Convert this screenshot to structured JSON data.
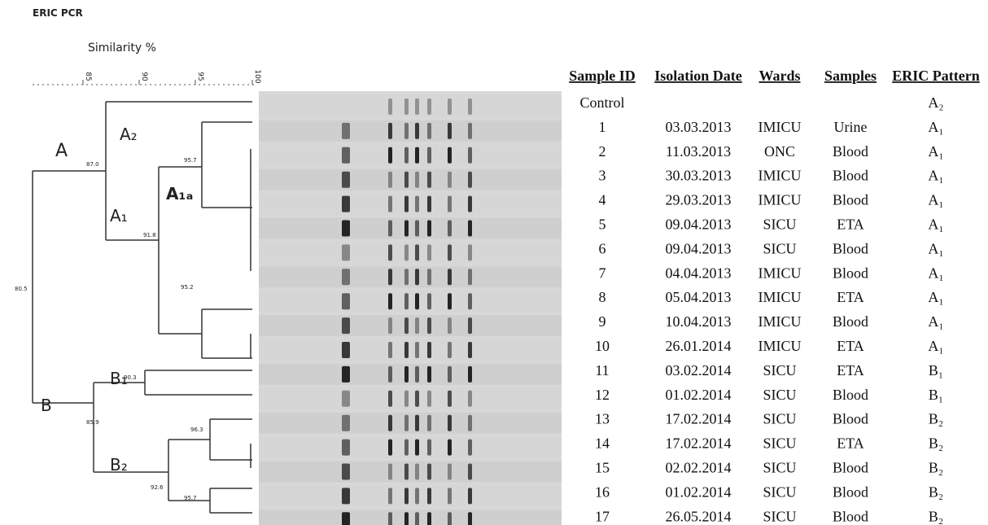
{
  "title": "ERIC PCR",
  "scale": {
    "label": "Similarity %",
    "ticks": [
      "85",
      "90",
      "95",
      "100"
    ]
  },
  "dendrogram": {
    "clusters": [
      "A",
      "A₂",
      "A₁",
      "A₁ₐ",
      "B",
      "B₁",
      "B₂"
    ],
    "node_values": [
      "80.5",
      "87.0",
      "95.7",
      "91.8",
      "95.2",
      "90.3",
      "85.9",
      "96.3",
      "92.6",
      "95.7"
    ]
  },
  "table": {
    "headers": [
      "Sample ID",
      "Isolation Date",
      "Wards",
      "Samples",
      "ERIC Pattern"
    ],
    "rows": [
      {
        "id": "Control",
        "pattern": "A₂"
      },
      {
        "id": "1",
        "date": "03.03.2013",
        "ward": "IMICU",
        "sample": "Urine",
        "pattern": "A₁"
      },
      {
        "id": "2",
        "date": "11.03.2013",
        "ward": "ONC",
        "sample": "Blood",
        "pattern": "A₁"
      },
      {
        "id": "3",
        "date": "30.03.2013",
        "ward": "IMICU",
        "sample": "Blood",
        "pattern": "A₁"
      },
      {
        "id": "4",
        "date": "29.03.2013",
        "ward": "IMICU",
        "sample": "Blood",
        "pattern": "A₁"
      },
      {
        "id": "5",
        "date": "09.04.2013",
        "ward": "SICU",
        "sample": "ETA",
        "pattern": "A₁"
      },
      {
        "id": "6",
        "date": "09.04.2013",
        "ward": "SICU",
        "sample": "Blood",
        "pattern": "A₁"
      },
      {
        "id": "7",
        "date": "04.04.2013",
        "ward": "IMICU",
        "sample": "Blood",
        "pattern": "A₁"
      },
      {
        "id": "8",
        "date": "05.04.2013",
        "ward": "IMICU",
        "sample": "ETA",
        "pattern": "A₁"
      },
      {
        "id": "9",
        "date": "10.04.2013",
        "ward": "IMICU",
        "sample": "Blood",
        "pattern": "A₁"
      },
      {
        "id": "10",
        "date": "26.01.2014",
        "ward": "IMICU",
        "sample": "ETA",
        "pattern": "A₁"
      },
      {
        "id": "11",
        "date": "03.02.2014",
        "ward": "SICU",
        "sample": "ETA",
        "pattern": "B₁"
      },
      {
        "id": "12",
        "date": "01.02.2014",
        "ward": "SICU",
        "sample": "Blood",
        "pattern": "B₁"
      },
      {
        "id": "13",
        "date": "17.02.2014",
        "ward": "SICU",
        "sample": "Blood",
        "pattern": "B₂"
      },
      {
        "id": "14",
        "date": "17.02.2014",
        "ward": "SICU",
        "sample": "ETA",
        "pattern": "B₂"
      },
      {
        "id": "15",
        "date": "02.02.2014",
        "ward": "SICU",
        "sample": "Blood",
        "pattern": "B₂"
      },
      {
        "id": "16",
        "date": "01.02.2014",
        "ward": "SICU",
        "sample": "Blood",
        "pattern": "B₂"
      },
      {
        "id": "17",
        "date": "26.05.2014",
        "ward": "SICU",
        "sample": "Blood",
        "pattern": "B₂"
      }
    ]
  }
}
